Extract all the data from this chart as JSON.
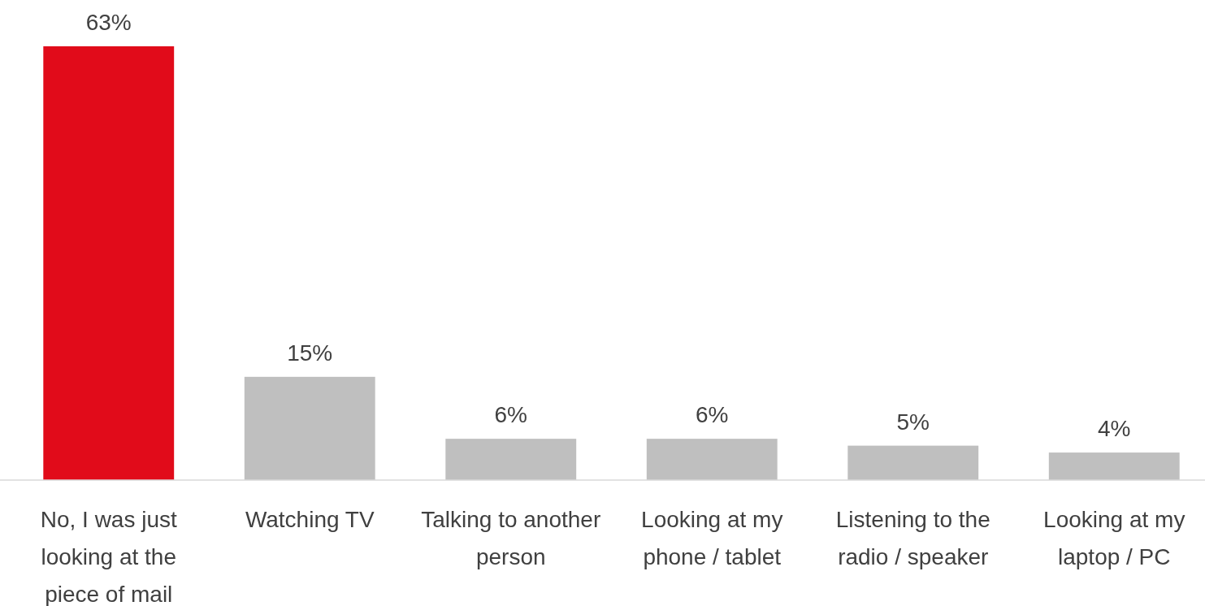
{
  "chart_data": {
    "type": "bar",
    "categories": [
      "No, I was just looking at the piece of mail",
      "Watching TV",
      "Talking to another person",
      "Looking at my phone / tablet",
      "Listening to the radio / speaker",
      "Looking at my laptop / PC"
    ],
    "values": [
      63,
      15,
      6,
      6,
      5,
      4
    ],
    "colors": [
      "#e10b1a",
      "#bfbfbf",
      "#bfbfbf",
      "#bfbfbf",
      "#bfbfbf",
      "#bfbfbf"
    ],
    "value_labels": [
      "63%",
      "15%",
      "6%",
      "6%",
      "5%",
      "4%"
    ]
  }
}
